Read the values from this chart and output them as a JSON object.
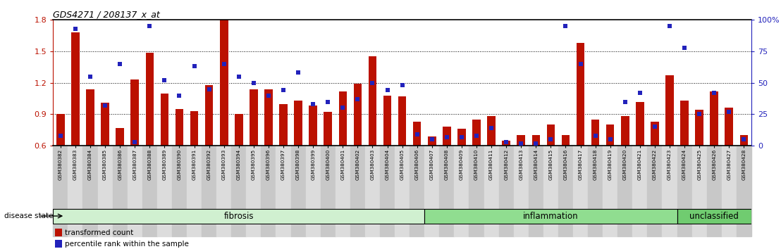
{
  "title": "GDS4271 / 208137_x_at",
  "samples": [
    "GSM380382",
    "GSM380383",
    "GSM380384",
    "GSM380385",
    "GSM380386",
    "GSM380387",
    "GSM380388",
    "GSM380389",
    "GSM380390",
    "GSM380391",
    "GSM380392",
    "GSM380393",
    "GSM380394",
    "GSM380395",
    "GSM380396",
    "GSM380397",
    "GSM380398",
    "GSM380399",
    "GSM380400",
    "GSM380401",
    "GSM380402",
    "GSM380403",
    "GSM380404",
    "GSM380405",
    "GSM380406",
    "GSM380407",
    "GSM380408",
    "GSM380409",
    "GSM380410",
    "GSM380411",
    "GSM380412",
    "GSM380413",
    "GSM380414",
    "GSM380415",
    "GSM380416",
    "GSM380417",
    "GSM380418",
    "GSM380419",
    "GSM380420",
    "GSM380421",
    "GSM380422",
    "GSM380423",
    "GSM380424",
    "GSM380425",
    "GSM380426",
    "GSM380427",
    "GSM380428"
  ],
  "bar_values": [
    0.9,
    1.68,
    1.14,
    1.01,
    0.77,
    1.23,
    1.49,
    1.1,
    0.95,
    0.93,
    1.18,
    1.8,
    0.9,
    1.14,
    1.14,
    1.0,
    1.03,
    0.98,
    0.92,
    1.12,
    1.19,
    1.45,
    1.08,
    1.07,
    0.83,
    0.69,
    0.78,
    0.76,
    0.85,
    0.88,
    0.65,
    0.7,
    0.7,
    0.8,
    0.7,
    1.58,
    0.85,
    0.8,
    0.88,
    1.02,
    0.83,
    1.27,
    1.03,
    0.94,
    1.12,
    0.96,
    0.7
  ],
  "percentile_values": [
    8,
    93,
    55,
    32,
    65,
    3,
    95,
    52,
    40,
    63,
    45,
    65,
    55,
    50,
    40,
    44,
    58,
    33,
    35,
    30,
    37,
    50,
    44,
    48,
    9,
    5,
    7,
    7,
    8,
    14,
    3,
    2,
    2,
    5,
    95,
    65,
    8,
    5,
    35,
    42,
    15,
    95,
    78,
    25,
    42,
    27,
    5
  ],
  "groups": [
    {
      "label": "fibrosis",
      "start": 0,
      "end": 25,
      "color": "#d0f0d0"
    },
    {
      "label": "inflammation",
      "start": 25,
      "end": 42,
      "color": "#90dd90"
    },
    {
      "label": "unclassified",
      "start": 42,
      "end": 47,
      "color": "#70cc70"
    }
  ],
  "ylim": [
    0.6,
    1.8
  ],
  "yticks_left": [
    0.6,
    0.9,
    1.2,
    1.5,
    1.8
  ],
  "yticks_right": [
    0,
    25,
    50,
    75,
    100
  ],
  "ytick_right_labels": [
    "0",
    "25",
    "50",
    "75",
    "100%"
  ],
  "bar_color": "#bb1100",
  "percentile_color": "#2222bb",
  "legend_items": [
    {
      "label": "transformed count",
      "color": "#bb1100"
    },
    {
      "label": "percentile rank within the sample",
      "color": "#2222bb"
    }
  ],
  "disease_state_label": "disease state"
}
